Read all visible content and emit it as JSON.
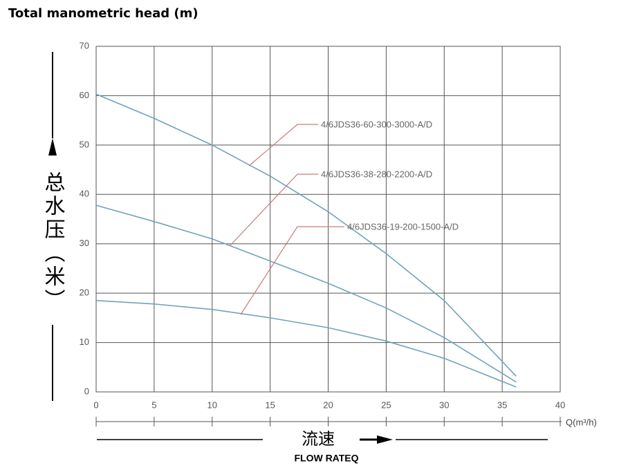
{
  "chart_data": {
    "type": "line",
    "title": "Total manometric head (m)",
    "y_label": "总水压（米）",
    "x_label": "Q(m³/h)",
    "x_label_cn": "流速",
    "x_label_en": "FLOW RATEQ",
    "x": [
      0,
      5,
      10,
      15,
      20,
      25,
      30,
      36.2
    ],
    "series": [
      {
        "name": "4/6JDS36-60-300-3000-A/D",
        "color": "#6fa3bb",
        "values": [
          60.3,
          55.4,
          50,
          43.7,
          36.5,
          28,
          18.5,
          3.2
        ]
      },
      {
        "name": "4/6JDS36-38-280-2200-A/D",
        "color": "#6fa3bb",
        "values": [
          37.8,
          34.5,
          31,
          26.5,
          22,
          17,
          11,
          2
        ]
      },
      {
        "name": "4/6JDS36-19-200-1500-A/D",
        "color": "#6fa3bb",
        "values": [
          18.5,
          17.8,
          16.7,
          15,
          13,
          10.3,
          6.8,
          1
        ]
      }
    ],
    "xlim": [
      0,
      40
    ],
    "xticks": [
      0,
      5,
      10,
      15,
      20,
      25,
      30,
      35,
      40
    ],
    "ylim": [
      0,
      70
    ],
    "yticks": [
      0,
      10,
      20,
      30,
      40,
      50,
      60,
      70
    ],
    "grid": true
  }
}
